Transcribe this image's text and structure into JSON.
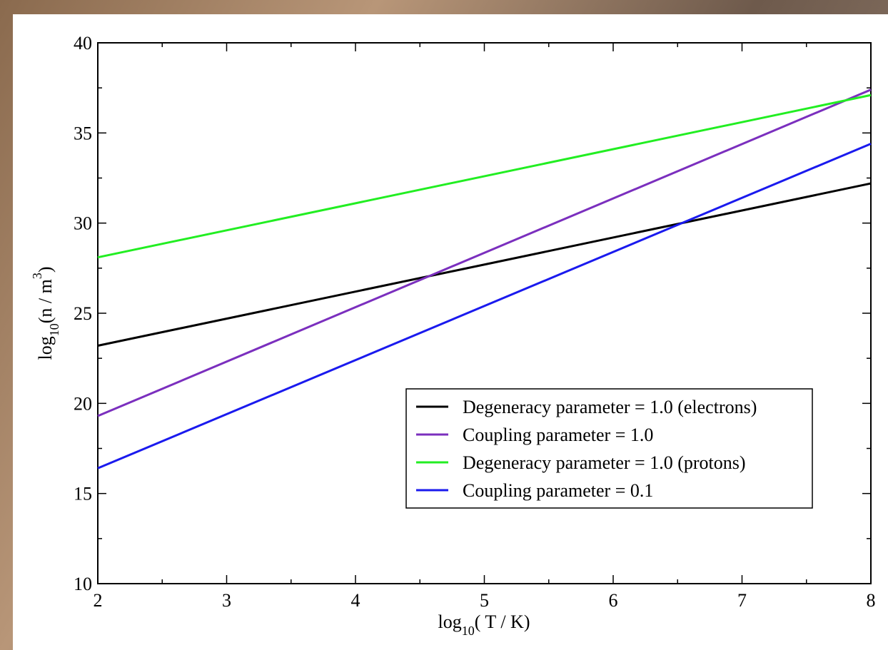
{
  "chart_data": {
    "type": "line",
    "xlabel": [
      "log",
      "10",
      "( T / K)"
    ],
    "ylabel": [
      "log",
      "10",
      "(n / m",
      "3",
      ")"
    ],
    "x": [
      2,
      8
    ],
    "series": [
      {
        "name": "Degeneracy parameter = 1.0 (electrons)",
        "color": "#000000",
        "values": [
          23.2,
          32.2
        ]
      },
      {
        "name": "Coupling parameter = 1.0",
        "color": "#7b2fbe",
        "values": [
          19.3,
          37.4
        ]
      },
      {
        "name": "Degeneracy parameter = 1.0 (protons)",
        "color": "#22ee22",
        "values": [
          28.1,
          37.1
        ]
      },
      {
        "name": "Coupling parameter = 0.1",
        "color": "#1a1aee",
        "values": [
          16.4,
          34.4
        ]
      }
    ],
    "xlim": [
      2,
      8
    ],
    "xticks": [
      2,
      3,
      4,
      5,
      6,
      7,
      8
    ],
    "xticks_minor": [
      2.5,
      3.5,
      4.5,
      5.5,
      6.5,
      7.5
    ],
    "ylim": [
      10,
      40
    ],
    "yticks": [
      10,
      15,
      20,
      25,
      30,
      35,
      40
    ],
    "yticks_minor": [
      12.5,
      17.5,
      22.5,
      27.5,
      32.5,
      37.5
    ],
    "legend": "lower right"
  }
}
